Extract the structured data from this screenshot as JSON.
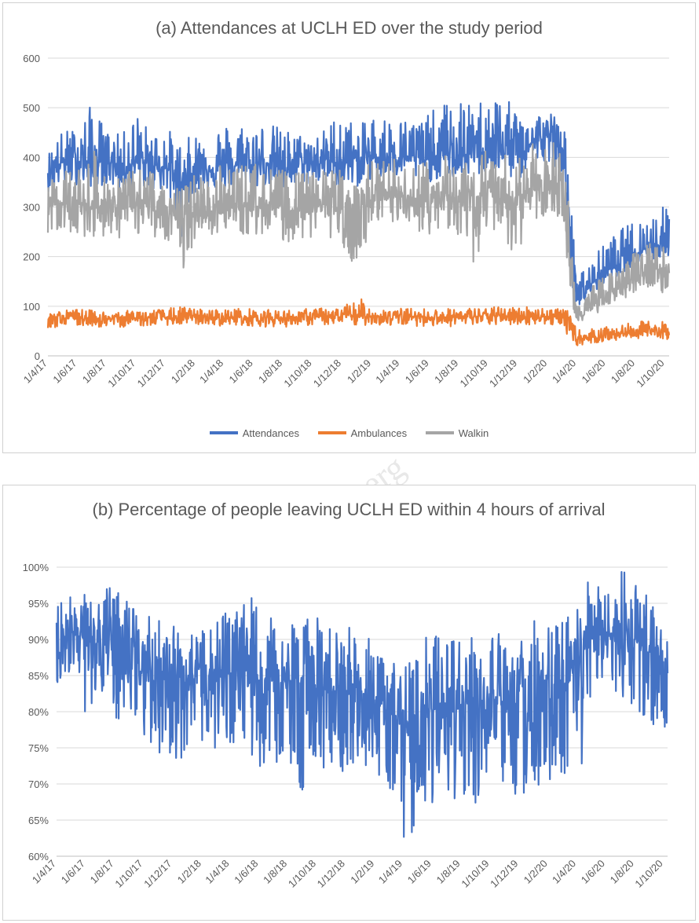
{
  "colors": {
    "attendances": "#4472c4",
    "ambulances": "#ed7d31",
    "walkin": "#a5a5a5",
    "grid": "#d9d9d9",
    "axis": "#595959"
  },
  "x_tick_labels": [
    "1/4/17",
    "1/6/17",
    "1/8/17",
    "1/10/17",
    "1/12/17",
    "1/2/18",
    "1/4/18",
    "1/6/18",
    "1/8/18",
    "1/10/18",
    "1/12/18",
    "1/2/19",
    "1/4/19",
    "1/6/19",
    "1/8/19",
    "1/10/19",
    "1/12/19",
    "1/2/20",
    "1/4/20",
    "1/6/20",
    "1/8/20",
    "1/10/20"
  ],
  "chart_data": [
    {
      "type": "line",
      "title": "(a) Attendances at UCLH ED over the study period",
      "xlabel": "",
      "ylabel": "",
      "x_range": [
        "1/4/17",
        "10/10/20"
      ],
      "ylim": [
        0,
        600
      ],
      "y_ticks": [
        0,
        100,
        200,
        300,
        400,
        500,
        600
      ],
      "y_tick_labels": [
        "0",
        "100",
        "200",
        "300",
        "400",
        "500",
        "600"
      ],
      "x_tick_labels": [
        "1/4/17",
        "1/6/17",
        "1/8/17",
        "1/10/17",
        "1/12/17",
        "1/2/18",
        "1/4/18",
        "1/6/18",
        "1/8/18",
        "1/10/18",
        "1/12/18",
        "1/2/19",
        "1/4/19",
        "1/6/19",
        "1/8/19",
        "1/10/19",
        "1/12/19",
        "1/2/20",
        "1/4/20",
        "1/6/20",
        "1/8/20",
        "1/10/20"
      ],
      "grid": true,
      "legend_position": "bottom",
      "series": [
        {
          "name": "Attendances",
          "color": "#4472c4",
          "x": [
            "1/4/17",
            "1/5/17",
            "1/6/17",
            "1/7/17",
            "1/8/17",
            "1/9/17",
            "1/10/17",
            "1/11/17",
            "1/12/17",
            "1/1/18",
            "1/2/18",
            "1/3/18",
            "1/4/18",
            "1/5/18",
            "1/6/18",
            "1/7/18",
            "1/8/18",
            "1/9/18",
            "1/10/18",
            "1/11/18",
            "1/12/18",
            "1/1/19",
            "1/2/19",
            "1/3/19",
            "1/4/19",
            "1/5/19",
            "1/6/19",
            "1/7/19",
            "1/8/19",
            "1/9/19",
            "1/10/19",
            "1/11/19",
            "1/12/19",
            "1/1/20",
            "1/2/20",
            "1/3/20",
            "15/3/20",
            "1/4/20",
            "15/4/20",
            "1/5/20",
            "1/6/20",
            "1/7/20",
            "1/8/20",
            "1/9/20",
            "10/10/20"
          ],
          "values": [
            375,
            390,
            395,
            385,
            395,
            380,
            390,
            385,
            380,
            350,
            375,
            380,
            375,
            385,
            380,
            390,
            375,
            385,
            390,
            395,
            385,
            395,
            400,
            400,
            405,
            400,
            395,
            405,
            400,
            410,
            420,
            415,
            405,
            430,
            440,
            420,
            300,
            115,
            120,
            145,
            170,
            190,
            210,
            220,
            230
          ],
          "min": [
            330,
            345,
            345,
            340,
            345,
            330,
            340,
            335,
            330,
            235,
            330,
            335,
            330,
            340,
            335,
            345,
            330,
            340,
            345,
            350,
            340,
            340,
            355,
            355,
            360,
            355,
            350,
            360,
            355,
            360,
            370,
            365,
            350,
            385,
            395,
            370,
            180,
            100,
            105,
            125,
            145,
            165,
            185,
            190,
            200
          ],
          "max": [
            410,
            455,
            460,
            510,
            455,
            445,
            495,
            450,
            465,
            430,
            450,
            460,
            470,
            470,
            475,
            470,
            460,
            450,
            445,
            460,
            510,
            455,
            490,
            485,
            480,
            480,
            490,
            510,
            520,
            500,
            540,
            520,
            500,
            495,
            490,
            500,
            400,
            150,
            175,
            195,
            230,
            255,
            275,
            285,
            310
          ]
        },
        {
          "name": "Ambulances",
          "color": "#ed7d31",
          "x": [
            "1/4/17",
            "1/5/17",
            "1/6/17",
            "1/7/17",
            "1/8/17",
            "1/9/17",
            "1/10/17",
            "1/11/17",
            "1/12/17",
            "1/1/18",
            "1/2/18",
            "1/3/18",
            "1/4/18",
            "1/5/18",
            "1/6/18",
            "1/7/18",
            "1/8/18",
            "1/9/18",
            "1/10/18",
            "1/11/18",
            "1/12/18",
            "1/1/19",
            "1/2/19",
            "1/3/19",
            "1/4/19",
            "1/5/19",
            "1/6/19",
            "1/7/19",
            "1/8/19",
            "1/9/19",
            "1/10/19",
            "1/11/19",
            "1/12/19",
            "1/1/20",
            "1/2/20",
            "1/3/20",
            "15/3/20",
            "1/4/20",
            "15/4/20",
            "1/5/20",
            "1/6/20",
            "1/7/20",
            "1/8/20",
            "1/9/20",
            "10/10/20"
          ],
          "values": [
            75,
            76,
            77,
            76,
            74,
            75,
            76,
            76,
            77,
            77,
            78,
            77,
            77,
            78,
            77,
            76,
            76,
            77,
            78,
            79,
            79,
            80,
            80,
            79,
            79,
            79,
            78,
            78,
            78,
            79,
            80,
            80,
            80,
            80,
            79,
            78,
            70,
            35,
            35,
            38,
            42,
            45,
            48,
            50,
            52
          ],
          "min": [
            55,
            58,
            60,
            60,
            55,
            58,
            60,
            60,
            62,
            62,
            63,
            62,
            60,
            62,
            60,
            58,
            58,
            60,
            62,
            62,
            62,
            60,
            63,
            60,
            62,
            60,
            60,
            58,
            60,
            60,
            62,
            62,
            62,
            63,
            62,
            60,
            40,
            20,
            22,
            25,
            28,
            32,
            35,
            36,
            33
          ],
          "max": [
            90,
            92,
            95,
            92,
            90,
            90,
            93,
            93,
            95,
            100,
            95,
            94,
            94,
            96,
            95,
            93,
            92,
            94,
            96,
            97,
            97,
            122,
            98,
            96,
            96,
            96,
            95,
            95,
            96,
            97,
            98,
            99,
            100,
            100,
            98,
            96,
            90,
            55,
            50,
            55,
            58,
            62,
            68,
            72,
            68
          ]
        },
        {
          "name": "Walkin",
          "color": "#a5a5a5",
          "x": [
            "1/4/17",
            "1/5/17",
            "1/6/17",
            "1/7/17",
            "1/8/17",
            "1/9/17",
            "1/10/17",
            "1/11/17",
            "1/12/17",
            "1/1/18",
            "1/2/18",
            "1/3/18",
            "1/4/18",
            "1/5/18",
            "1/6/18",
            "1/7/18",
            "1/8/18",
            "1/9/18",
            "1/10/18",
            "1/11/18",
            "1/12/18",
            "1/1/19",
            "1/2/19",
            "1/3/19",
            "1/4/19",
            "1/5/19",
            "1/6/19",
            "1/7/19",
            "1/8/19",
            "1/9/19",
            "1/10/19",
            "1/11/19",
            "1/12/19",
            "1/1/20",
            "1/2/20",
            "1/3/20",
            "15/3/20",
            "1/4/20",
            "15/4/20",
            "1/5/20",
            "1/6/20",
            "1/7/20",
            "1/8/20",
            "1/9/20",
            "10/10/20"
          ],
          "values": [
            300,
            310,
            305,
            300,
            305,
            295,
            305,
            300,
            295,
            270,
            290,
            300,
            295,
            300,
            300,
            305,
            290,
            295,
            300,
            305,
            295,
            300,
            310,
            315,
            320,
            315,
            310,
            315,
            310,
            320,
            330,
            325,
            315,
            335,
            345,
            330,
            220,
            80,
            85,
            105,
            125,
            140,
            160,
            170,
            180
          ],
          "min": [
            245,
            250,
            240,
            240,
            240,
            235,
            245,
            240,
            235,
            150,
            240,
            245,
            240,
            245,
            240,
            245,
            230,
            230,
            235,
            240,
            230,
            135,
            250,
            255,
            260,
            250,
            245,
            250,
            240,
            180,
            255,
            250,
            175,
            270,
            280,
            260,
            120,
            65,
            70,
            80,
            95,
            110,
            130,
            140,
            120
          ],
          "max": [
            350,
            380,
            380,
            420,
            370,
            360,
            380,
            375,
            380,
            335,
            370,
            380,
            385,
            390,
            390,
            385,
            375,
            370,
            370,
            380,
            380,
            355,
            395,
            400,
            395,
            390,
            400,
            405,
            410,
            415,
            420,
            410,
            400,
            430,
            435,
            420,
            320,
            100,
            120,
            140,
            165,
            190,
            210,
            230,
            250
          ]
        }
      ]
    },
    {
      "type": "line",
      "title": "(b) Percentage of people leaving UCLH ED within 4 hours of arrival",
      "xlabel": "",
      "ylabel": "",
      "x_range": [
        "1/4/17",
        "10/10/20"
      ],
      "ylim": [
        60,
        100
      ],
      "y_ticks": [
        60,
        65,
        70,
        75,
        80,
        85,
        90,
        95,
        100
      ],
      "y_tick_labels": [
        "60%",
        "65%",
        "70%",
        "75%",
        "80%",
        "85%",
        "90%",
        "95%",
        "100%"
      ],
      "x_tick_labels": [
        "1/4/17",
        "1/6/17",
        "1/8/17",
        "1/10/17",
        "1/12/17",
        "1/2/18",
        "1/4/18",
        "1/6/18",
        "1/8/18",
        "1/10/18",
        "1/12/18",
        "1/2/19",
        "1/4/19",
        "1/6/19",
        "1/8/19",
        "1/10/19",
        "1/12/19",
        "1/2/20",
        "1/4/20",
        "1/6/20",
        "1/8/20",
        "1/10/20"
      ],
      "grid": true,
      "legend_position": "none",
      "series": [
        {
          "color": "#4472c4",
          "x": [
            "1/4/17",
            "1/5/17",
            "1/6/17",
            "1/7/17",
            "1/8/17",
            "1/9/17",
            "1/10/17",
            "1/11/17",
            "1/12/17",
            "1/1/18",
            "1/2/18",
            "1/3/18",
            "1/4/18",
            "1/5/18",
            "1/6/18",
            "1/7/18",
            "1/8/18",
            "1/9/18",
            "1/10/18",
            "1/11/18",
            "1/12/18",
            "1/1/19",
            "1/2/19",
            "1/3/19",
            "1/4/19",
            "1/5/19",
            "1/6/19",
            "1/7/19",
            "1/8/19",
            "1/9/19",
            "1/10/19",
            "1/11/19",
            "1/12/19",
            "1/1/20",
            "1/2/20",
            "1/3/20",
            "1/4/20",
            "1/5/20",
            "1/6/20",
            "1/7/20",
            "1/8/20",
            "1/9/20",
            "10/10/20"
          ],
          "values": [
            88,
            91,
            90,
            89,
            88,
            88,
            86,
            85,
            85,
            84,
            85,
            85,
            84,
            84,
            84,
            84,
            84,
            84,
            83,
            83,
            83,
            82,
            81,
            80,
            78,
            79,
            81,
            81,
            81,
            81,
            82,
            81,
            80,
            79,
            81,
            83,
            84,
            90,
            91,
            91,
            90,
            88,
            86
          ],
          "min": [
            81,
            86,
            79,
            83,
            78,
            80,
            77,
            74,
            73,
            74,
            75,
            74,
            72,
            73,
            72,
            72,
            72,
            69,
            73,
            70,
            72,
            71,
            72,
            68,
            60,
            64,
            67,
            66,
            67,
            65,
            70,
            68,
            67,
            67,
            68,
            68,
            62,
            81,
            83,
            82,
            80,
            77,
            77
          ],
          "max": [
            96,
            97,
            97,
            96,
            98,
            95,
            93,
            94,
            92,
            91,
            91,
            94,
            94,
            97,
            95,
            93,
            93,
            93,
            93,
            92,
            93,
            91,
            90,
            88,
            86,
            88,
            92,
            91,
            91,
            92,
            92,
            91,
            90,
            93,
            92,
            93,
            94,
            99,
            98,
            100,
            98,
            97,
            90
          ]
        }
      ]
    }
  ],
  "watermark_text": "erg"
}
